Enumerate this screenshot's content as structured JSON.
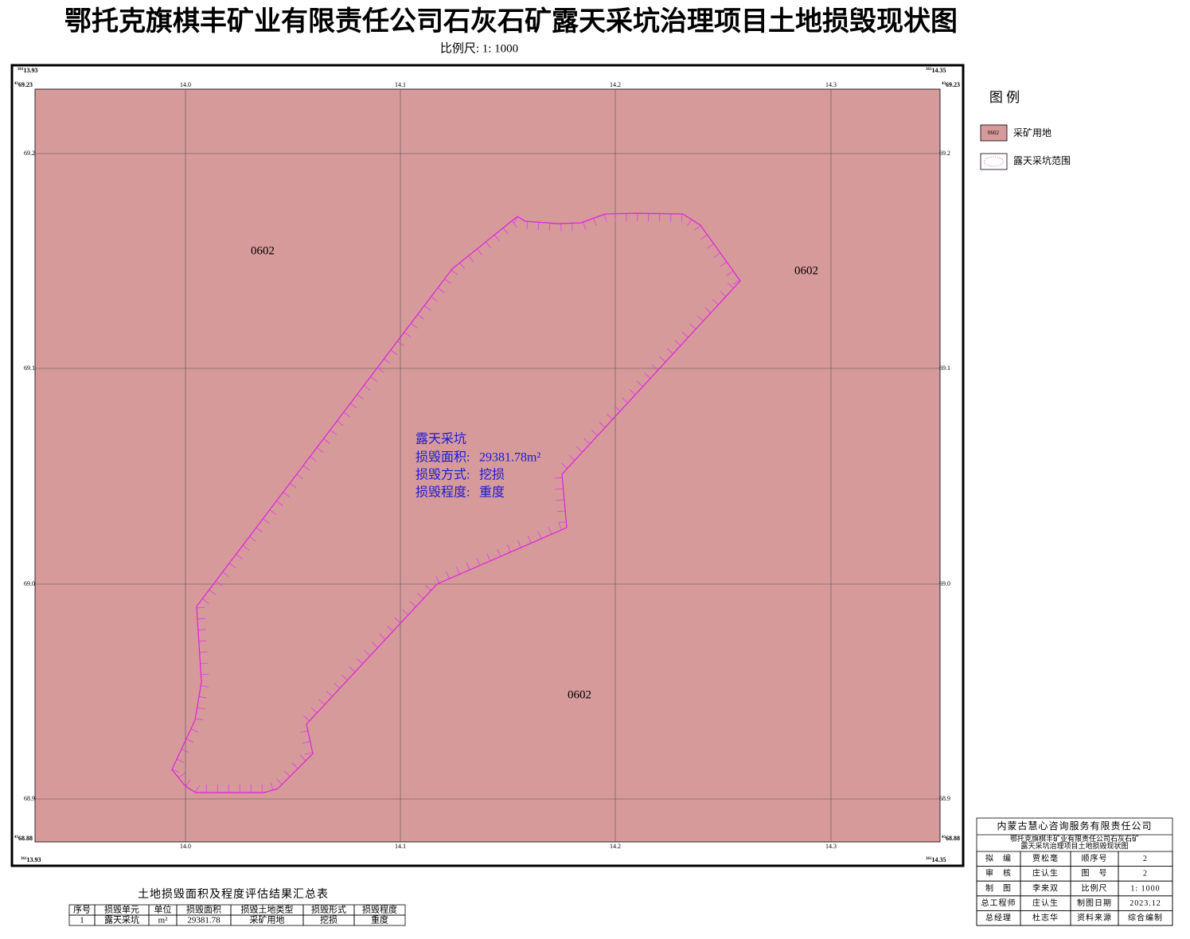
{
  "title": "鄂托克旗棋丰矿业有限责任公司石灰石矿露天采坑治理项目土地损毁现状图",
  "scale": "比例尺:  1: 1000",
  "map": {
    "corners": {
      "top_left_x": {
        "sup": "361",
        "text": "13.93"
      },
      "top_right_x": {
        "sup": "361",
        "text": "14.35"
      },
      "left_top_y": {
        "sup": "43",
        "text": "69.23"
      },
      "right_top_y": {
        "sup": "43",
        "text": "69.23"
      },
      "left_bottom_y": {
        "sup": "43",
        "text": "68.88"
      },
      "right_bottom_y": {
        "sup": "43",
        "text": "68.88"
      },
      "bottom_left_x": {
        "sup": "361",
        "text": "13.93"
      },
      "bottom_right_x": {
        "sup": "361",
        "text": "14.35"
      }
    },
    "x_grid": [
      "14.0",
      "14.1",
      "14.2",
      "14.3"
    ],
    "y_grid": [
      "69.2",
      "69.1",
      "69.0",
      "68.9"
    ],
    "parcel_labels": [
      "0602",
      "0602",
      "0602"
    ],
    "pit": {
      "name": "露天采坑",
      "area_label": "损毁面积:",
      "area": "29381.78m²",
      "method_label": "损毁方式:",
      "method": "挖损",
      "degree_label": "损毁程度:",
      "degree": "重度"
    }
  },
  "legend": {
    "title": "图 例",
    "items": [
      {
        "symbol": "0602",
        "label": "采矿用地"
      },
      {
        "label": "露天采坑范围"
      }
    ]
  },
  "summary": {
    "title": "土地损毁面积及程度评估结果汇总表",
    "header": [
      "序号",
      "损毁单元",
      "单位",
      "损毁面积",
      "损毁土地类型",
      "损毁形式",
      "损毁程度"
    ],
    "rows": [
      [
        "1",
        "露天采坑",
        "m²",
        "29381.78",
        "采矿用地",
        "挖损",
        "重度"
      ]
    ]
  },
  "title_block": {
    "company": "内蒙古慧心咨询服务有限责任公司",
    "project": [
      "鄂托克旗棋丰矿业有限责任公司石灰石矿",
      "露天采坑治理项目土地损毁现状图"
    ],
    "rows": [
      [
        "拟　编",
        "贾松毫",
        "顺序号",
        "2"
      ],
      [
        "审　核",
        "庄认生",
        "图　号",
        "2"
      ],
      [
        "制　图",
        "李来双",
        "比例尺",
        "1: 1000"
      ],
      [
        "总工程师",
        "庄认生",
        "制图日期",
        "2023.12"
      ],
      [
        "总经理",
        "杜志华",
        "资料来源",
        "综合编制"
      ]
    ]
  }
}
